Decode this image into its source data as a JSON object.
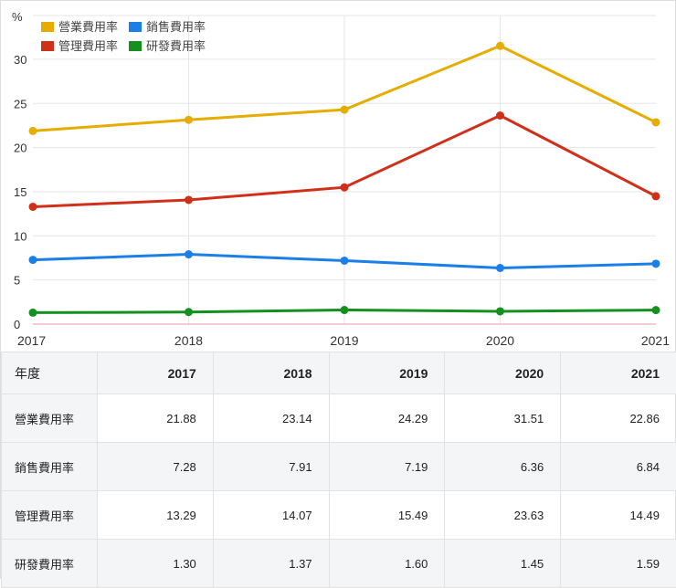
{
  "chart_data": {
    "type": "line",
    "ylabel": "%",
    "ylim": [
      0,
      33
    ],
    "yticks": [
      0,
      5,
      10,
      15,
      20,
      25,
      30
    ],
    "categories": [
      "2017",
      "2018",
      "2019",
      "2020",
      "2021"
    ],
    "legend_placement": "top-left",
    "series": [
      {
        "name": "營業費用率",
        "color": "#e6ac00",
        "values": [
          21.88,
          23.14,
          24.29,
          31.51,
          22.86
        ]
      },
      {
        "name": "銷售費用率",
        "color": "#1a7fe6",
        "values": [
          7.28,
          7.91,
          7.19,
          6.36,
          6.84
        ]
      },
      {
        "name": "管理費用率",
        "color": "#d0301a",
        "values": [
          13.29,
          14.07,
          15.49,
          23.63,
          14.49
        ]
      },
      {
        "name": "研發費用率",
        "color": "#14901e",
        "values": [
          1.3,
          1.37,
          1.6,
          1.45,
          1.59
        ]
      }
    ]
  },
  "table": {
    "header": [
      "年度",
      "2017",
      "2018",
      "2019",
      "2020",
      "2021"
    ],
    "rows": [
      [
        "營業費用率",
        "21.88",
        "23.14",
        "24.29",
        "31.51",
        "22.86"
      ],
      [
        "銷售費用率",
        "7.28",
        "7.91",
        "7.19",
        "6.36",
        "6.84"
      ],
      [
        "管理費用率",
        "13.29",
        "14.07",
        "15.49",
        "23.63",
        "14.49"
      ],
      [
        "研發費用率",
        "1.30",
        "1.37",
        "1.60",
        "1.45",
        "1.59"
      ]
    ]
  }
}
